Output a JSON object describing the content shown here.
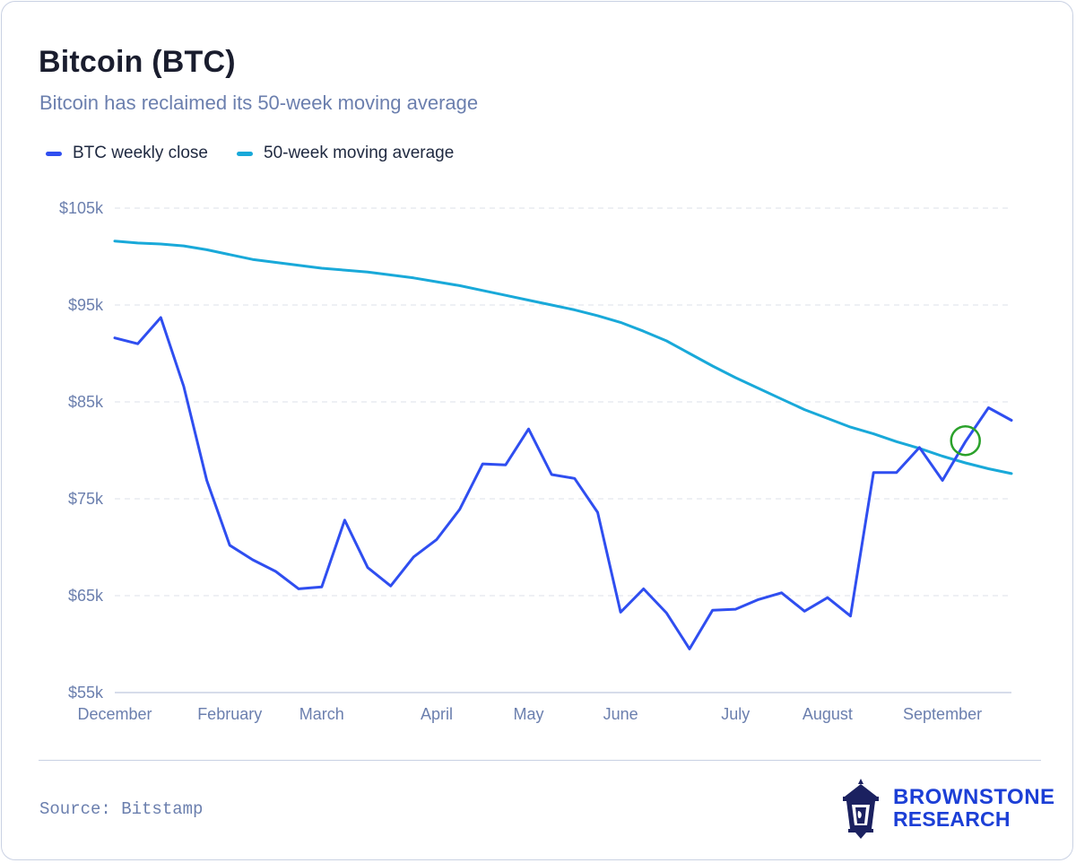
{
  "header": {
    "title": "Bitcoin (BTC)",
    "subtitle": "Bitcoin has reclaimed its 50-week moving average"
  },
  "footer": {
    "source": "Source: Bitstamp",
    "brand_line1": "BROWNSTONE",
    "brand_line2": "RESEARCH",
    "brand_logo_icon": "lantern-icon"
  },
  "colors": {
    "btc": "#2f4ef0",
    "ma": "#19a9d9",
    "marker": "#2aa12a",
    "grid": "#e3e6ee",
    "tick": "#6b7fae",
    "brand": "#1c3fd6"
  },
  "chart_data": {
    "type": "line",
    "title": "Bitcoin (BTC)",
    "subtitle": "Bitcoin has reclaimed its 50-week moving average",
    "xlabel": "",
    "ylabel": "",
    "ylim": [
      55000,
      105000
    ],
    "yticks": [
      55000,
      65000,
      75000,
      85000,
      95000,
      105000
    ],
    "ytick_labels": [
      "$55k",
      "$65k",
      "$75k",
      "$85k",
      "$95k",
      "$105k"
    ],
    "grid": true,
    "legend_position": "top-left",
    "x_tick_labels": [
      "December",
      "February",
      "March",
      "April",
      "May",
      "June",
      "July",
      "August",
      "September"
    ],
    "x_tick_index": [
      0,
      5,
      9,
      14,
      18,
      22,
      27,
      31,
      36
    ],
    "x": [
      0,
      1,
      2,
      3,
      4,
      5,
      6,
      7,
      8,
      9,
      10,
      11,
      12,
      13,
      14,
      15,
      16,
      17,
      18,
      19,
      20,
      21,
      22,
      23,
      24,
      25,
      26,
      27,
      28,
      29,
      30,
      31,
      32,
      33,
      34,
      35,
      36,
      37,
      38,
      39
    ],
    "series": [
      {
        "name": "BTC weekly close",
        "values": [
          91600,
          91000,
          93700,
          86600,
          76900,
          70200,
          68700,
          67500,
          65700,
          65900,
          72800,
          67900,
          66000,
          69000,
          70800,
          73900,
          78600,
          78500,
          82200,
          77500,
          77100,
          73600,
          63300,
          65700,
          63200,
          59500,
          63500,
          63600,
          64600,
          65300,
          63400,
          64800,
          62900,
          77700,
          77700,
          80300,
          76900,
          80900,
          84400,
          83100
        ]
      },
      {
        "name": "50-week moving average",
        "values": [
          101600,
          101400,
          101300,
          101100,
          100700,
          100200,
          99700,
          99400,
          99100,
          98800,
          98600,
          98400,
          98100,
          97800,
          97400,
          97000,
          96500,
          96000,
          95500,
          95000,
          94500,
          93900,
          93200,
          92300,
          91300,
          90000,
          88700,
          87500,
          86400,
          85300,
          84200,
          83300,
          82400,
          81700,
          80900,
          80200,
          79400,
          78700,
          78100,
          77600
        ]
      }
    ],
    "annotations": [
      {
        "type": "circle-marker",
        "series": "crossover",
        "x": 37,
        "y": 81000
      }
    ]
  }
}
